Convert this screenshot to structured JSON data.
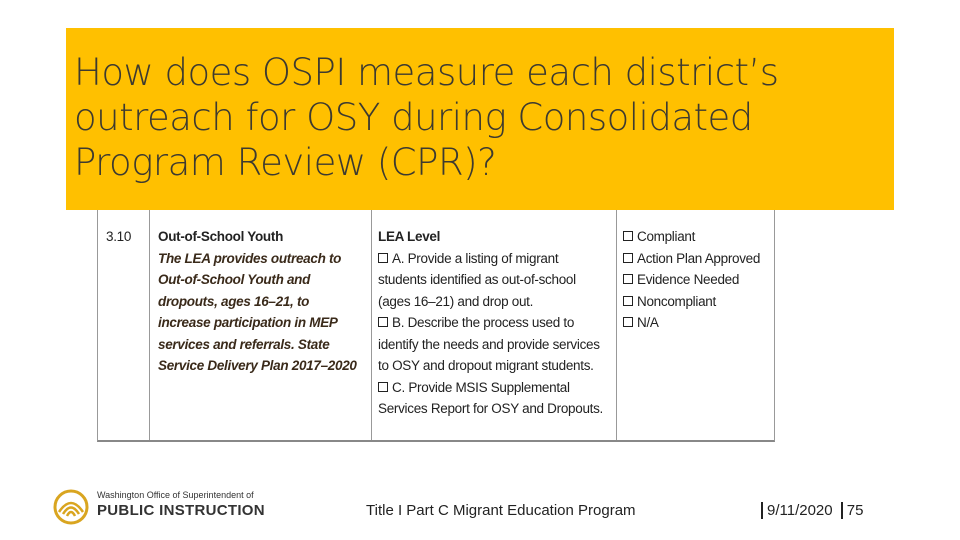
{
  "header": {
    "title": "How does OSPI measure each district’s outreach for OSY during Consolidated Program Review (CPR)?"
  },
  "table": {
    "number": "3.10",
    "topic": {
      "heading": "Out-of-School Youth",
      "body": "The LEA provides outreach to Out-of-School Youth and dropouts, ages 16–21, to increase participation in MEP services and referrals. State Service Delivery Plan 2017–2020"
    },
    "evidence": {
      "heading": "LEA Level",
      "items": [
        "A. Provide a listing of migrant students identified as out-of-school (ages 16–21) and drop out.",
        "B. Describe the process used to identify the needs and provide services to OSY and dropout migrant students.",
        "C. Provide MSIS Supplemental Services Report for OSY and Dropouts."
      ]
    },
    "ratings": [
      "Compliant",
      "Action Plan Approved",
      "Evidence Needed",
      "Noncompliant",
      "N/A"
    ]
  },
  "footer": {
    "org_line1": "Washington Office of Superintendent of",
    "org_line2": "PUBLIC INSTRUCTION",
    "program": "Title I Part C Migrant Education Program",
    "date": "9/11/2020",
    "page": "75"
  }
}
